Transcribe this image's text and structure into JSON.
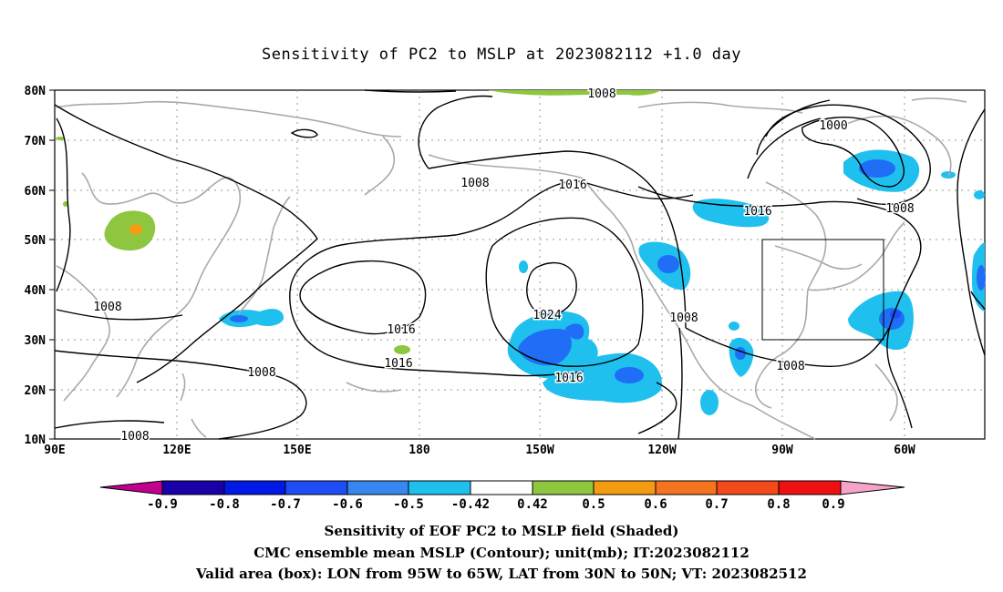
{
  "title": "Sensitivity of PC2 to MSLP at 2023082112 +1.0 day",
  "lat_labels": [
    "80N",
    "70N",
    "60N",
    "50N",
    "40N",
    "30N",
    "20N",
    "10N"
  ],
  "lon_labels": [
    "90E",
    "120E",
    "150E",
    "180",
    "150W",
    "120W",
    "90W",
    "60W"
  ],
  "isobar_labels": [
    "1008",
    "1000",
    "1008",
    "1016",
    "1008",
    "1016",
    "1008",
    "1024",
    "1016",
    "1008",
    "1016",
    "1016",
    "1008",
    "1008",
    "1008",
    "1008"
  ],
  "colorbar": {
    "ticks": [
      "-0.9",
      "-0.8",
      "-0.7",
      "-0.6",
      "-0.5",
      "-0.42",
      "0.42",
      "0.5",
      "0.6",
      "0.7",
      "0.8",
      "0.9"
    ],
    "colors": [
      "#1a00a8",
      "#0019e6",
      "#1f4cf5",
      "#3787f0",
      "#1fc0ee",
      "#ffffff",
      "#8ec63f",
      "#f39c12",
      "#f57420",
      "#f24a1a",
      "#ee1111"
    ],
    "low_end_color": "#c2008e",
    "high_end_color": "#f6a3c8"
  },
  "box": {
    "label": "Valid area (box)",
    "lon": "95W-65W",
    "lat": "30N-50N"
  },
  "captions": {
    "line1": "Sensitivity of EOF PC2 to MSLP field (Shaded)",
    "line2": "CMC ensemble mean MSLP (Contour); unit(mb); IT:2023082112",
    "line3": "Valid area (box): LON from 95W to 65W, LAT from 30N to 50N; VT: 2023082512"
  },
  "shading_colors": {
    "neg_light": "#1fc0ee",
    "neg_mid": "#1f6ef5",
    "neg_strong": "#1f4cf5",
    "pos_light": "#8ec63f",
    "pos_mid": "#f39c12"
  }
}
